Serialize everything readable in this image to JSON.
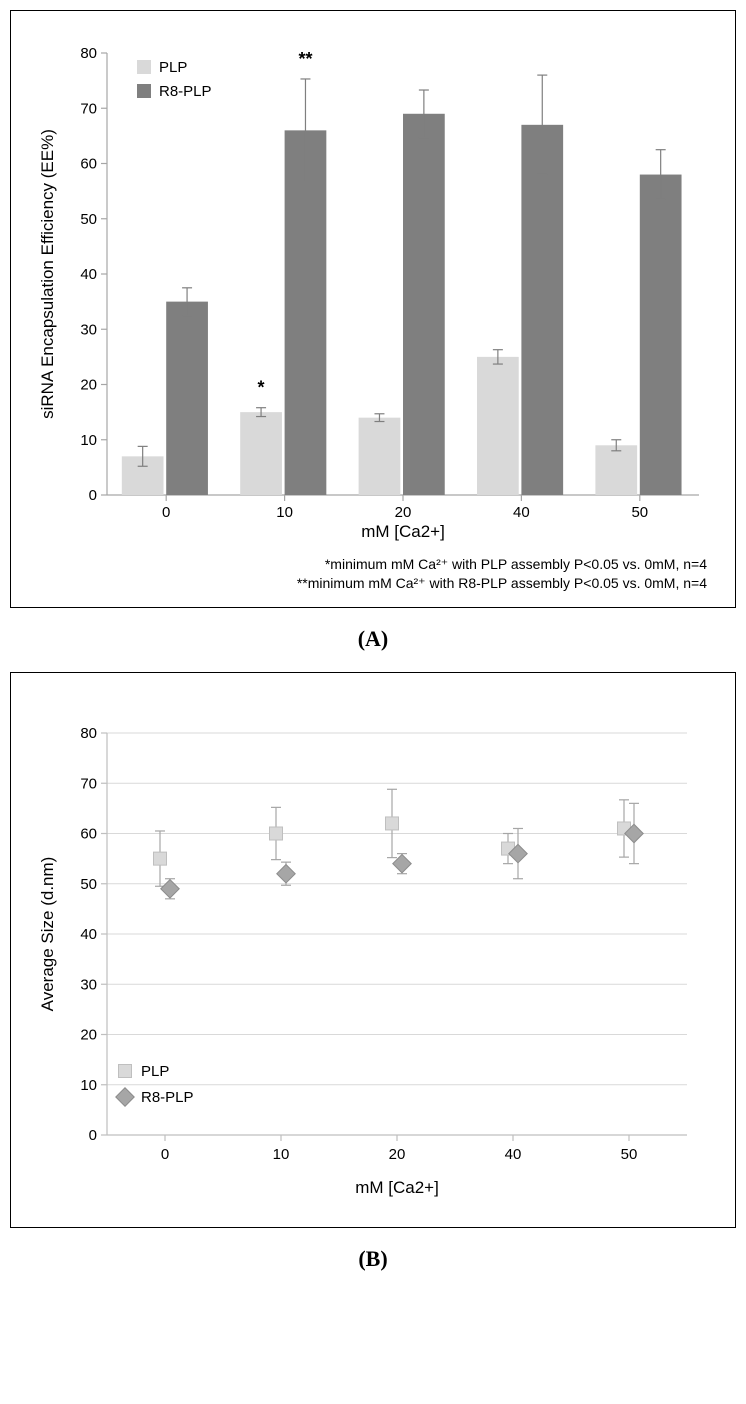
{
  "global": {
    "font_family": "Arial, Helvetica, sans-serif",
    "panel_border_color": "#000000",
    "background_color": "#ffffff"
  },
  "panelA": {
    "label": "(A)",
    "chart": {
      "type": "bar",
      "categories": [
        "0",
        "10",
        "20",
        "40",
        "50"
      ],
      "xlabel": "mM [Ca2+]",
      "ylabel": "siRNA Encapsulation Efficiency (EE%)",
      "ylim": [
        0,
        80
      ],
      "ytick_step": 10,
      "axis_color": "#a6a6a6",
      "grid": false,
      "bar_group_gap": 0.25,
      "bar_width": 0.32,
      "label_fontsize": 17,
      "tick_fontsize": 15,
      "series": [
        {
          "name": "PLP",
          "color": "#d9d9d9",
          "values": [
            7,
            15,
            14,
            25,
            9
          ],
          "err": [
            1.8,
            0.8,
            0.7,
            1.3,
            1.0
          ]
        },
        {
          "name": "R8-PLP",
          "color": "#7f7f7f",
          "values": [
            35,
            66,
            69,
            67,
            58
          ],
          "err": [
            2.5,
            9.3,
            4.3,
            9.0,
            4.5
          ]
        }
      ],
      "annotations": [
        {
          "text": "*",
          "category_index": 1,
          "series_index": 0,
          "dy": -14,
          "fontsize": 18
        },
        {
          "text": "**",
          "category_index": 1,
          "series_index": 1,
          "dy": -14,
          "fontsize": 18
        }
      ],
      "legend": {
        "position": "top-left-inside",
        "swatch": "square",
        "fontsize": 15,
        "items": [
          "PLP",
          "R8-PLP"
        ]
      },
      "errorbar_color": "#7f7f7f",
      "errorbar_width": 1.2,
      "errorbar_cap": 5
    },
    "footnotes": [
      "*minimum mM Ca²⁺ with PLP assembly P<0.05 vs. 0mM, n=4",
      "**minimum mM Ca²⁺ with R8-PLP assembly P<0.05 vs. 0mM, n=4"
    ]
  },
  "panelB": {
    "label": "(B)",
    "chart": {
      "type": "scatter",
      "categories": [
        "0",
        "10",
        "20",
        "40",
        "50"
      ],
      "xlabel": "mM [Ca2+]",
      "ylabel": "Average Size (d.nm)",
      "ylim": [
        0,
        80
      ],
      "ytick_step": 10,
      "axis_color": "#bfbfbf",
      "grid_color": "#d9d9d9",
      "grid": true,
      "label_fontsize": 17,
      "tick_fontsize": 15,
      "series": [
        {
          "name": "PLP",
          "marker": "square",
          "color": "#d9d9d9",
          "marker_stroke": "#bfbfbf",
          "marker_size": 13,
          "values": [
            55,
            60,
            62,
            57,
            61
          ],
          "err": [
            5.5,
            5.2,
            6.8,
            3.0,
            5.7
          ]
        },
        {
          "name": "R8-PLP",
          "marker": "diamond",
          "color": "#a6a6a6",
          "marker_stroke": "#8c8c8c",
          "marker_size": 12,
          "values": [
            49,
            52,
            54,
            56,
            60
          ],
          "err": [
            2.0,
            2.3,
            2.0,
            5.0,
            6.0
          ]
        }
      ],
      "legend": {
        "position": "bottom-left-inside",
        "fontsize": 15,
        "items": [
          "PLP",
          "R8-PLP"
        ]
      },
      "errorbar_color": "#a6a6a6",
      "errorbar_width": 1.2,
      "errorbar_cap": 5
    }
  }
}
